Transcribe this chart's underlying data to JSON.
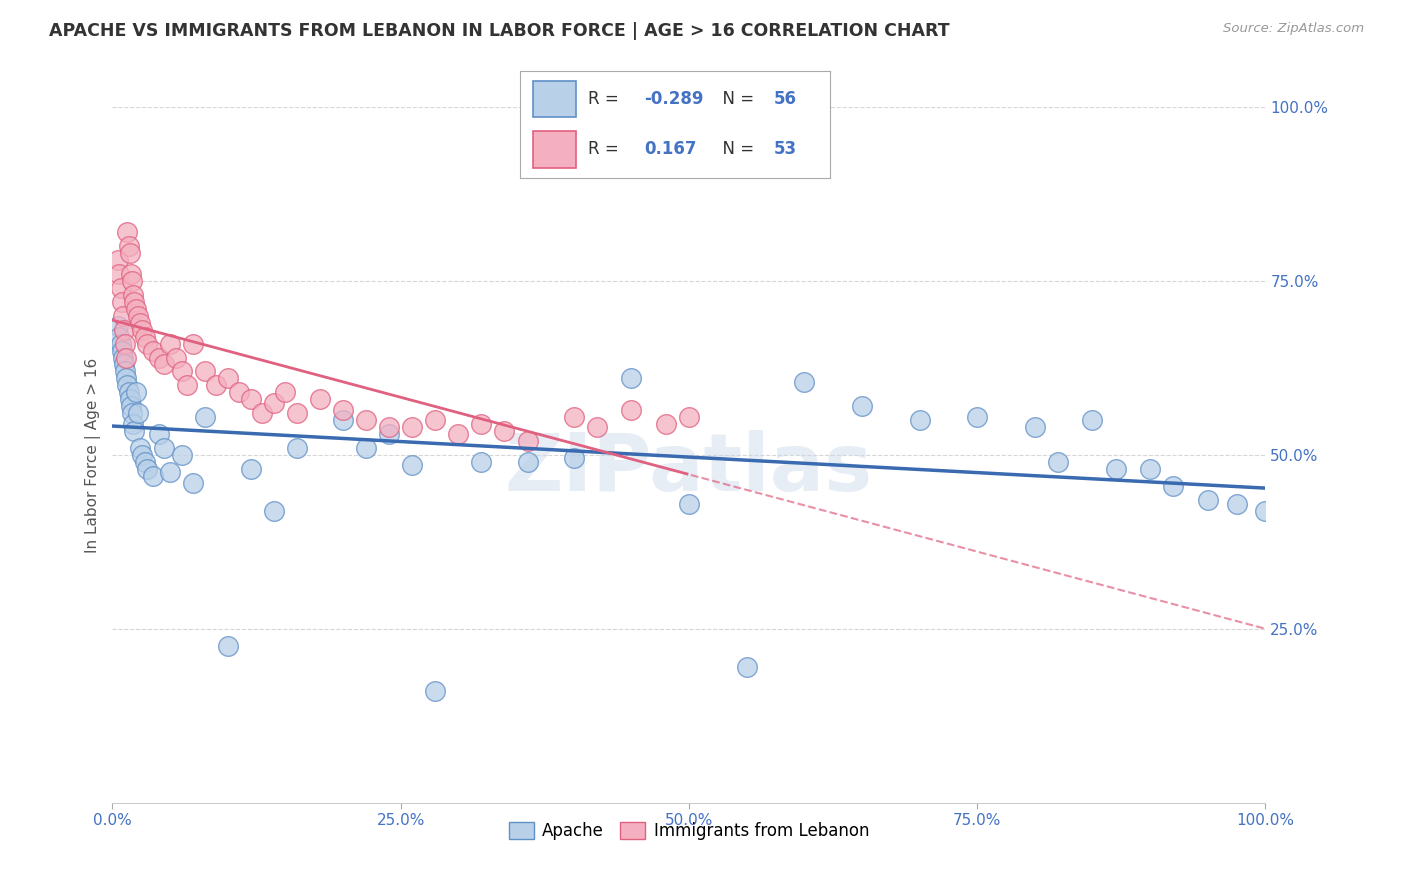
{
  "title": "APACHE VS IMMIGRANTS FROM LEBANON IN LABOR FORCE | AGE > 16 CORRELATION CHART",
  "source": "Source: ZipAtlas.com",
  "ylabel": "In Labor Force | Age > 16",
  "xlim": [
    0.0,
    1.0
  ],
  "ylim": [
    0.0,
    1.0
  ],
  "xticks": [
    0.0,
    0.25,
    0.5,
    0.75,
    1.0
  ],
  "xticklabels": [
    "0.0%",
    "25.0%",
    "50.0%",
    "75.0%",
    "100.0%"
  ],
  "yticks": [
    0.25,
    0.5,
    0.75,
    1.0
  ],
  "yticklabels": [
    "25.0%",
    "50.0%",
    "75.0%",
    "100.0%"
  ],
  "apache_R": "-0.289",
  "apache_N": "56",
  "lebanon_R": "0.167",
  "lebanon_N": "53",
  "apache_color": "#b8d0e8",
  "lebanon_color": "#f4b0c0",
  "apache_edge_color": "#6090c8",
  "lebanon_edge_color": "#e06080",
  "apache_line_color": "#3a6ab0",
  "lebanon_line_color": "#e06080",
  "watermark": "ZIPatlas",
  "apache_x": [
    0.005,
    0.006,
    0.007,
    0.008,
    0.009,
    0.01,
    0.011,
    0.012,
    0.013,
    0.014,
    0.015,
    0.016,
    0.017,
    0.018,
    0.019,
    0.02,
    0.022,
    0.024,
    0.026,
    0.028,
    0.03,
    0.035,
    0.04,
    0.045,
    0.05,
    0.06,
    0.07,
    0.08,
    0.1,
    0.12,
    0.14,
    0.16,
    0.2,
    0.22,
    0.24,
    0.26,
    0.28,
    0.32,
    0.36,
    0.4,
    0.45,
    0.5,
    0.55,
    0.6,
    0.65,
    0.7,
    0.75,
    0.8,
    0.82,
    0.85,
    0.87,
    0.9,
    0.92,
    0.95,
    0.975,
    1.0
  ],
  "apache_y": [
    0.685,
    0.67,
    0.66,
    0.65,
    0.64,
    0.63,
    0.62,
    0.61,
    0.6,
    0.59,
    0.58,
    0.57,
    0.56,
    0.545,
    0.535,
    0.59,
    0.56,
    0.51,
    0.5,
    0.49,
    0.48,
    0.47,
    0.53,
    0.51,
    0.475,
    0.5,
    0.46,
    0.555,
    0.225,
    0.48,
    0.42,
    0.51,
    0.55,
    0.51,
    0.53,
    0.485,
    0.16,
    0.49,
    0.49,
    0.495,
    0.61,
    0.43,
    0.195,
    0.605,
    0.57,
    0.55,
    0.555,
    0.54,
    0.49,
    0.55,
    0.48,
    0.48,
    0.455,
    0.435,
    0.43,
    0.42
  ],
  "lebanon_x": [
    0.005,
    0.006,
    0.007,
    0.008,
    0.009,
    0.01,
    0.011,
    0.012,
    0.013,
    0.014,
    0.015,
    0.016,
    0.017,
    0.018,
    0.019,
    0.02,
    0.022,
    0.024,
    0.026,
    0.028,
    0.03,
    0.035,
    0.04,
    0.045,
    0.05,
    0.055,
    0.06,
    0.065,
    0.07,
    0.08,
    0.09,
    0.1,
    0.11,
    0.12,
    0.13,
    0.14,
    0.15,
    0.16,
    0.18,
    0.2,
    0.22,
    0.24,
    0.26,
    0.28,
    0.3,
    0.32,
    0.34,
    0.36,
    0.4,
    0.42,
    0.45,
    0.48,
    0.5
  ],
  "lebanon_y": [
    0.78,
    0.76,
    0.74,
    0.72,
    0.7,
    0.68,
    0.66,
    0.64,
    0.82,
    0.8,
    0.79,
    0.76,
    0.75,
    0.73,
    0.72,
    0.71,
    0.7,
    0.69,
    0.68,
    0.67,
    0.66,
    0.65,
    0.64,
    0.63,
    0.66,
    0.64,
    0.62,
    0.6,
    0.66,
    0.62,
    0.6,
    0.61,
    0.59,
    0.58,
    0.56,
    0.575,
    0.59,
    0.56,
    0.58,
    0.565,
    0.55,
    0.54,
    0.54,
    0.55,
    0.53,
    0.545,
    0.535,
    0.52,
    0.555,
    0.54,
    0.565,
    0.545,
    0.555
  ]
}
